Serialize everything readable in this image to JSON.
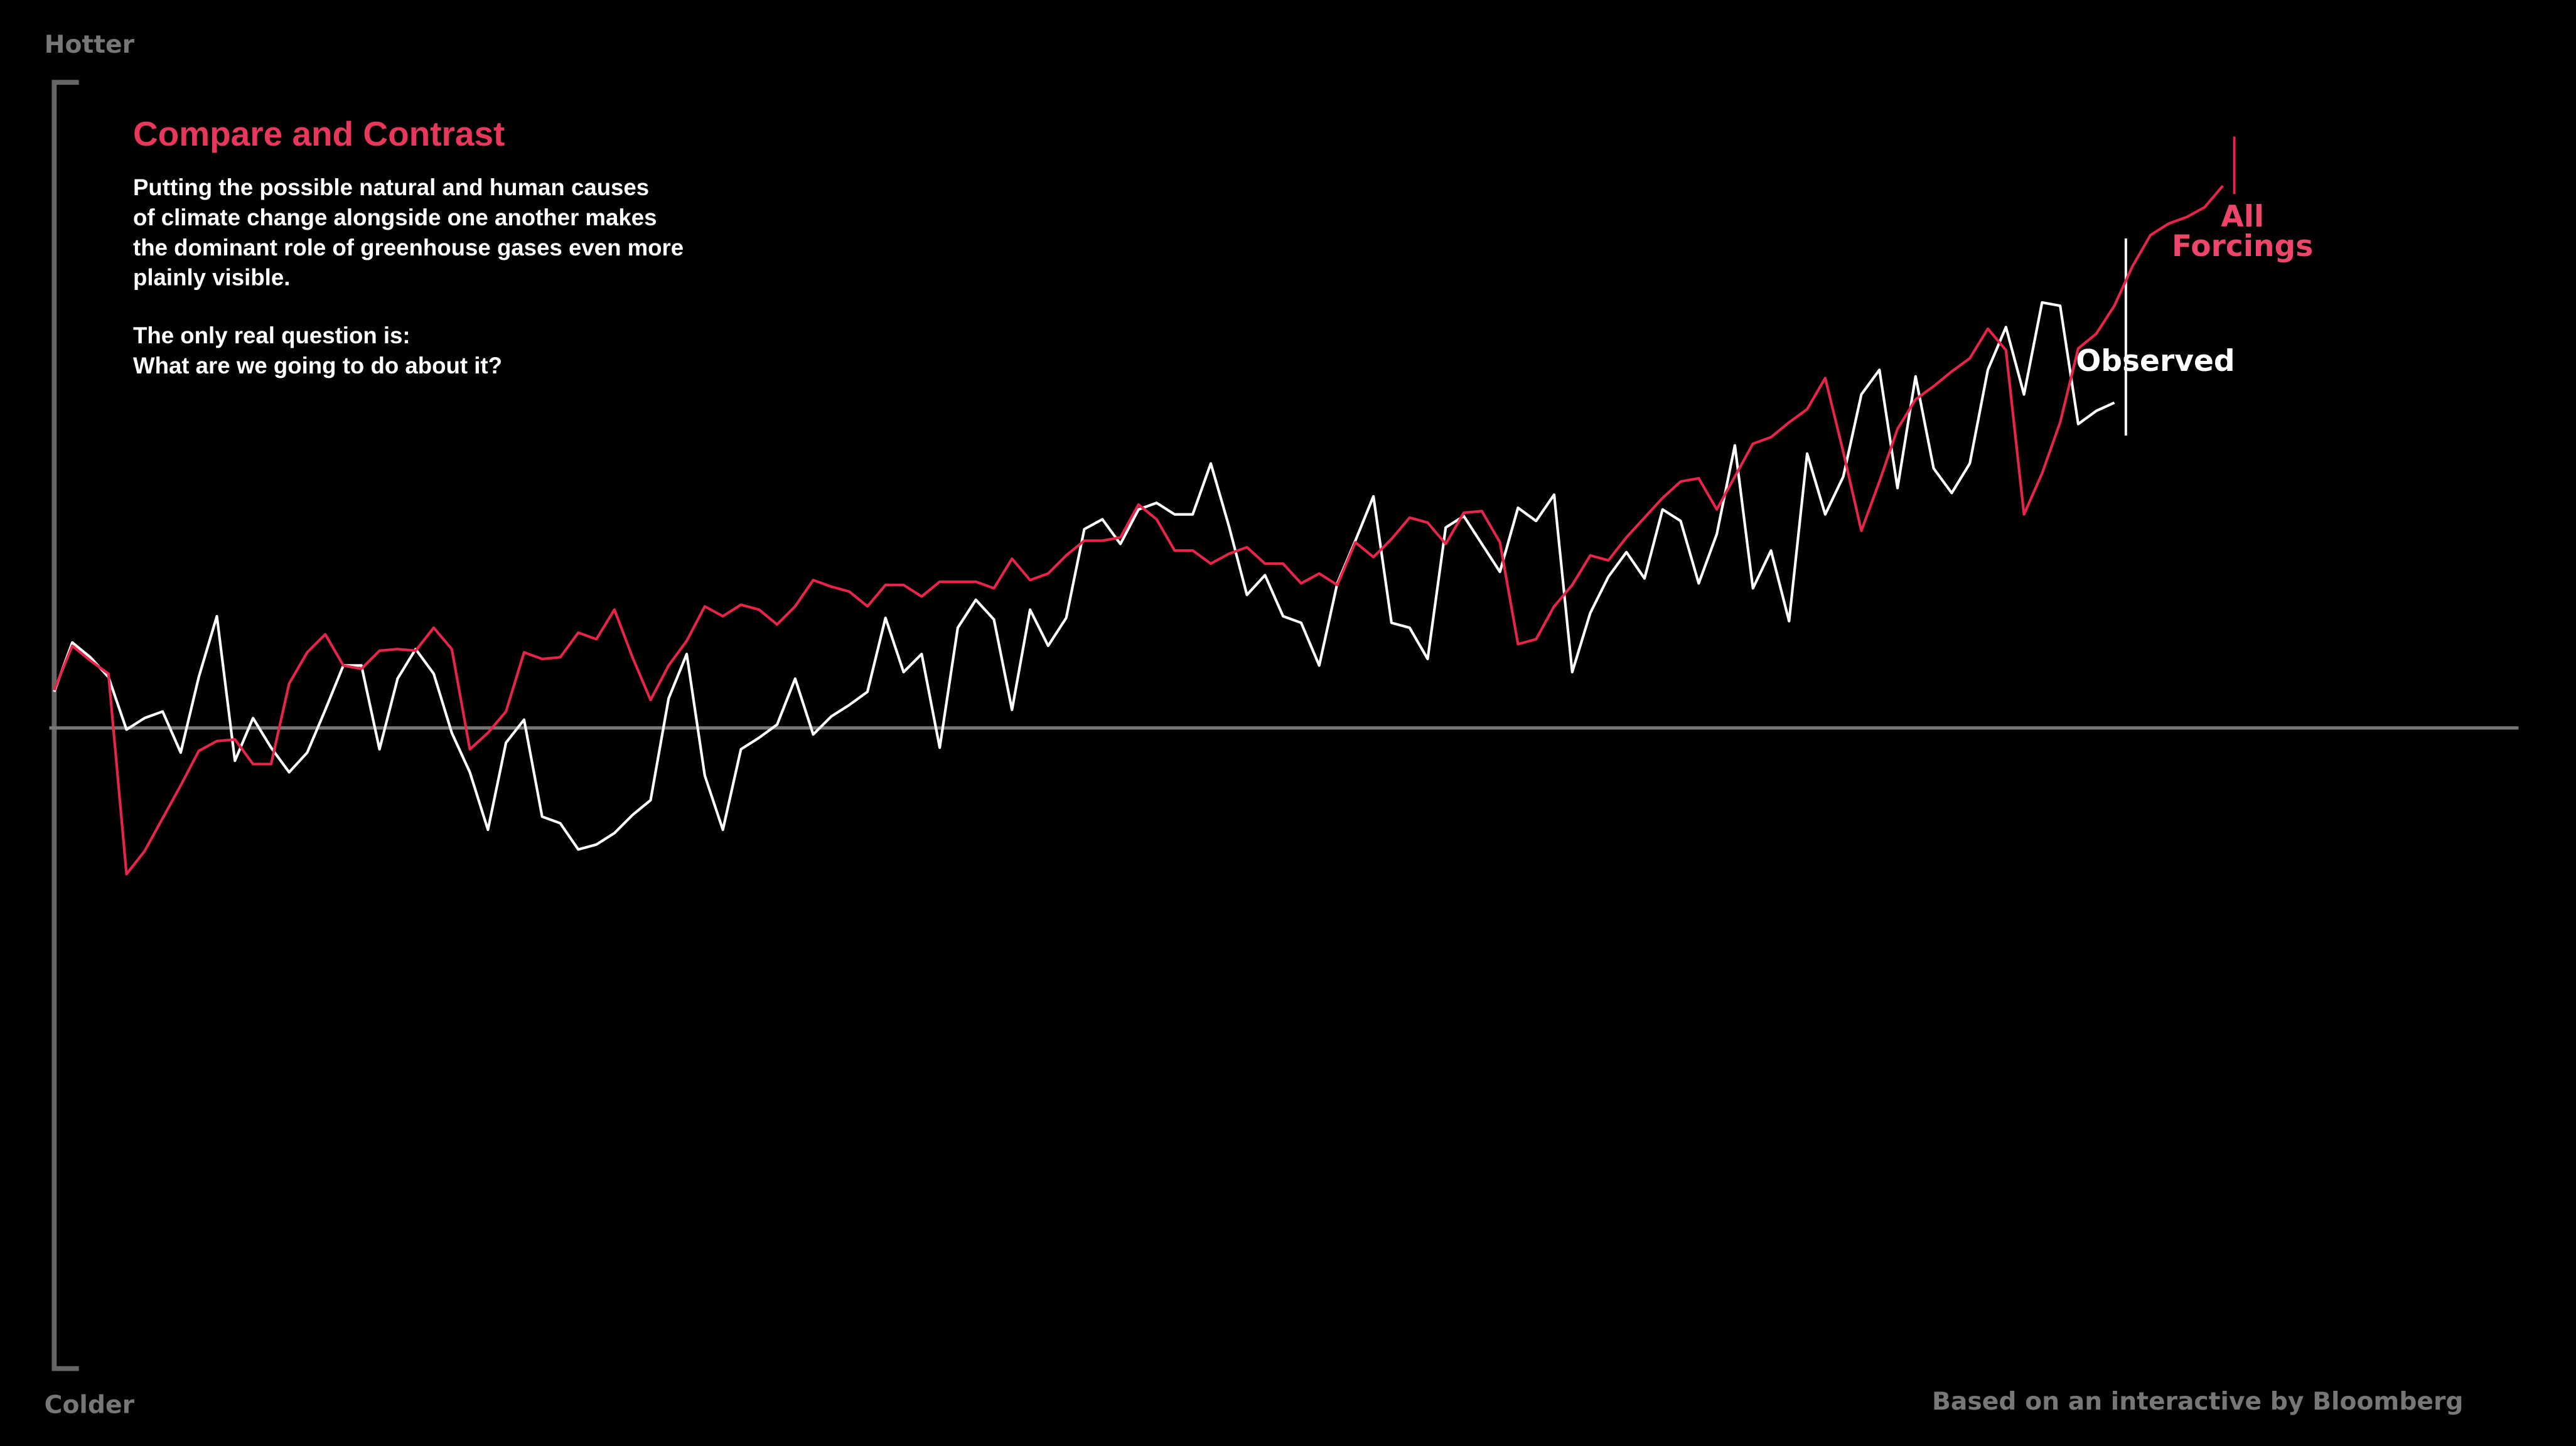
{
  "chart_data": {
    "type": "line",
    "title": "Compare and Contrast",
    "description": [
      "Putting the possible natural and human causes",
      "of climate change alongside one another makes",
      "the dominant role of greenhouse gases even more",
      "plainly visible."
    ],
    "question": [
      "The only real question is:",
      "What are we going to do about it?"
    ],
    "y_top_label": "Hotter",
    "y_bottom_label": "Colder",
    "source": "Based on an interactive by Bloomberg",
    "ylim": [
      -390,
      393
    ],
    "series": [
      {
        "name": "Observed",
        "color": "#ffffff",
        "values": [
          22,
          52,
          43,
          31,
          -1,
          6,
          10,
          -15,
          31,
          68,
          -20,
          6,
          -12,
          -27,
          -15,
          11,
          38,
          38,
          -13,
          30,
          48,
          33,
          -3,
          -27,
          -62,
          -9,
          5,
          -54,
          -58,
          -74,
          -71,
          -64,
          -53,
          -44,
          18,
          45,
          -29,
          -62,
          -13,
          -6,
          2,
          30,
          -4,
          7,
          14,
          22,
          67,
          34,
          45,
          -12,
          61,
          78,
          66,
          11,
          72,
          50,
          67,
          121,
          127,
          112,
          133,
          137,
          130,
          130,
          161,
          123,
          81,
          93,
          68,
          64,
          38,
          88,
          114,
          141,
          64,
          61,
          42,
          122,
          129,
          112,
          95,
          134,
          126,
          142,
          34,
          70,
          92,
          107,
          91,
          133,
          126,
          88,
          118,
          172,
          85,
          108,
          65,
          167,
          130,
          153,
          203,
          218,
          146,
          214,
          158,
          143,
          161,
          218,
          244,
          203,
          259,
          257,
          185,
          193,
          198
        ]
      },
      {
        "name": "All Forcings",
        "color": "#e8244a",
        "values": [
          23,
          50,
          41,
          33,
          -89,
          -75,
          -55,
          -35,
          -14,
          -8,
          -7,
          -22,
          -22,
          27,
          46,
          57,
          38,
          36,
          47,
          48,
          47,
          61,
          48,
          -13,
          -3,
          10,
          46,
          42,
          43,
          58,
          54,
          72,
          43,
          17,
          38,
          53,
          74,
          68,
          75,
          72,
          63,
          74,
          90,
          86,
          83,
          74,
          87,
          87,
          80,
          89,
          89,
          89,
          85,
          103,
          90,
          94,
          105,
          114,
          114,
          116,
          136,
          127,
          108,
          108,
          100,
          106,
          110,
          100,
          100,
          88,
          94,
          87,
          113,
          104,
          115,
          128,
          125,
          112,
          131,
          132,
          113,
          51,
          54,
          74,
          87,
          105,
          102,
          116,
          128,
          140,
          150,
          152,
          133,
          153,
          173,
          177,
          186,
          194,
          213,
          168,
          120,
          150,
          182,
          200,
          208,
          217,
          225,
          243,
          230,
          130,
          155,
          186,
          231,
          240,
          257,
          281,
          300,
          307,
          311,
          317,
          330
        ]
      }
    ]
  }
}
